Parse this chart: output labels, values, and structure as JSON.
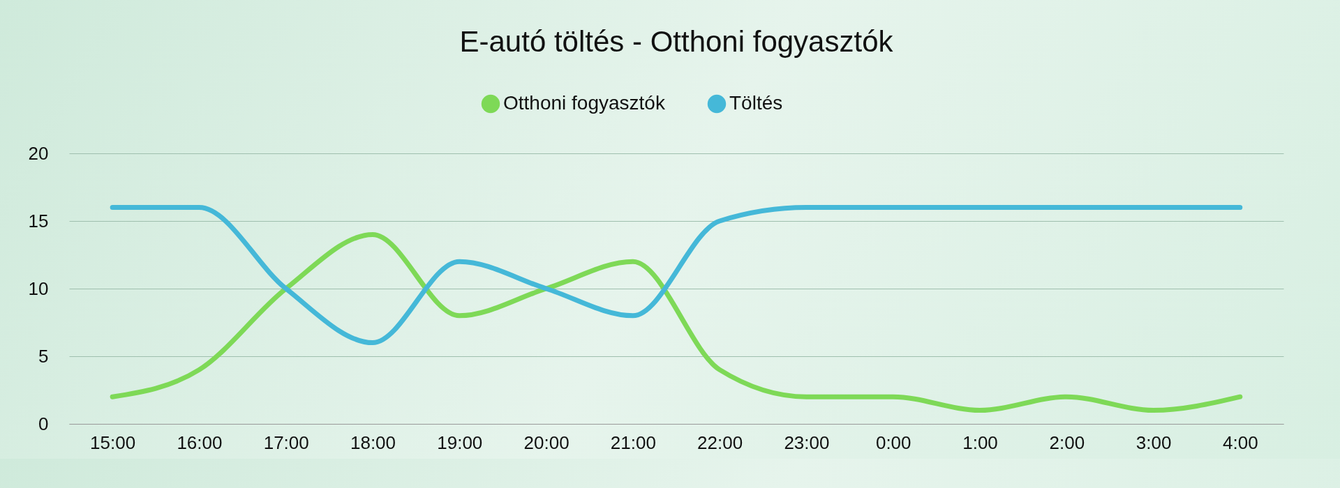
{
  "chart_data": {
    "type": "line",
    "title": "E-autó töltés - Otthoni fogyasztók",
    "categories": [
      "15:00",
      "16:00",
      "17:00",
      "18:00",
      "19:00",
      "20:00",
      "21:00",
      "22:00",
      "23:00",
      "0:00",
      "1:00",
      "2:00",
      "3:00",
      "4:00"
    ],
    "series": [
      {
        "name": "Otthoni fogyasztók",
        "color": "#7ed957",
        "values": [
          2,
          4,
          10,
          14,
          8,
          10,
          12,
          4,
          2,
          2,
          1,
          2,
          1,
          2
        ]
      },
      {
        "name": "Töltés",
        "color": "#45b8d8",
        "values": [
          16,
          16,
          10,
          6,
          12,
          10,
          8,
          15,
          16,
          16,
          16,
          16,
          16,
          16
        ]
      }
    ],
    "ylim": [
      0,
      20
    ],
    "yticks": [
      0,
      5,
      10,
      15,
      20
    ],
    "grid": "y",
    "legend": "top",
    "marker": "none",
    "line_style": "solid"
  }
}
